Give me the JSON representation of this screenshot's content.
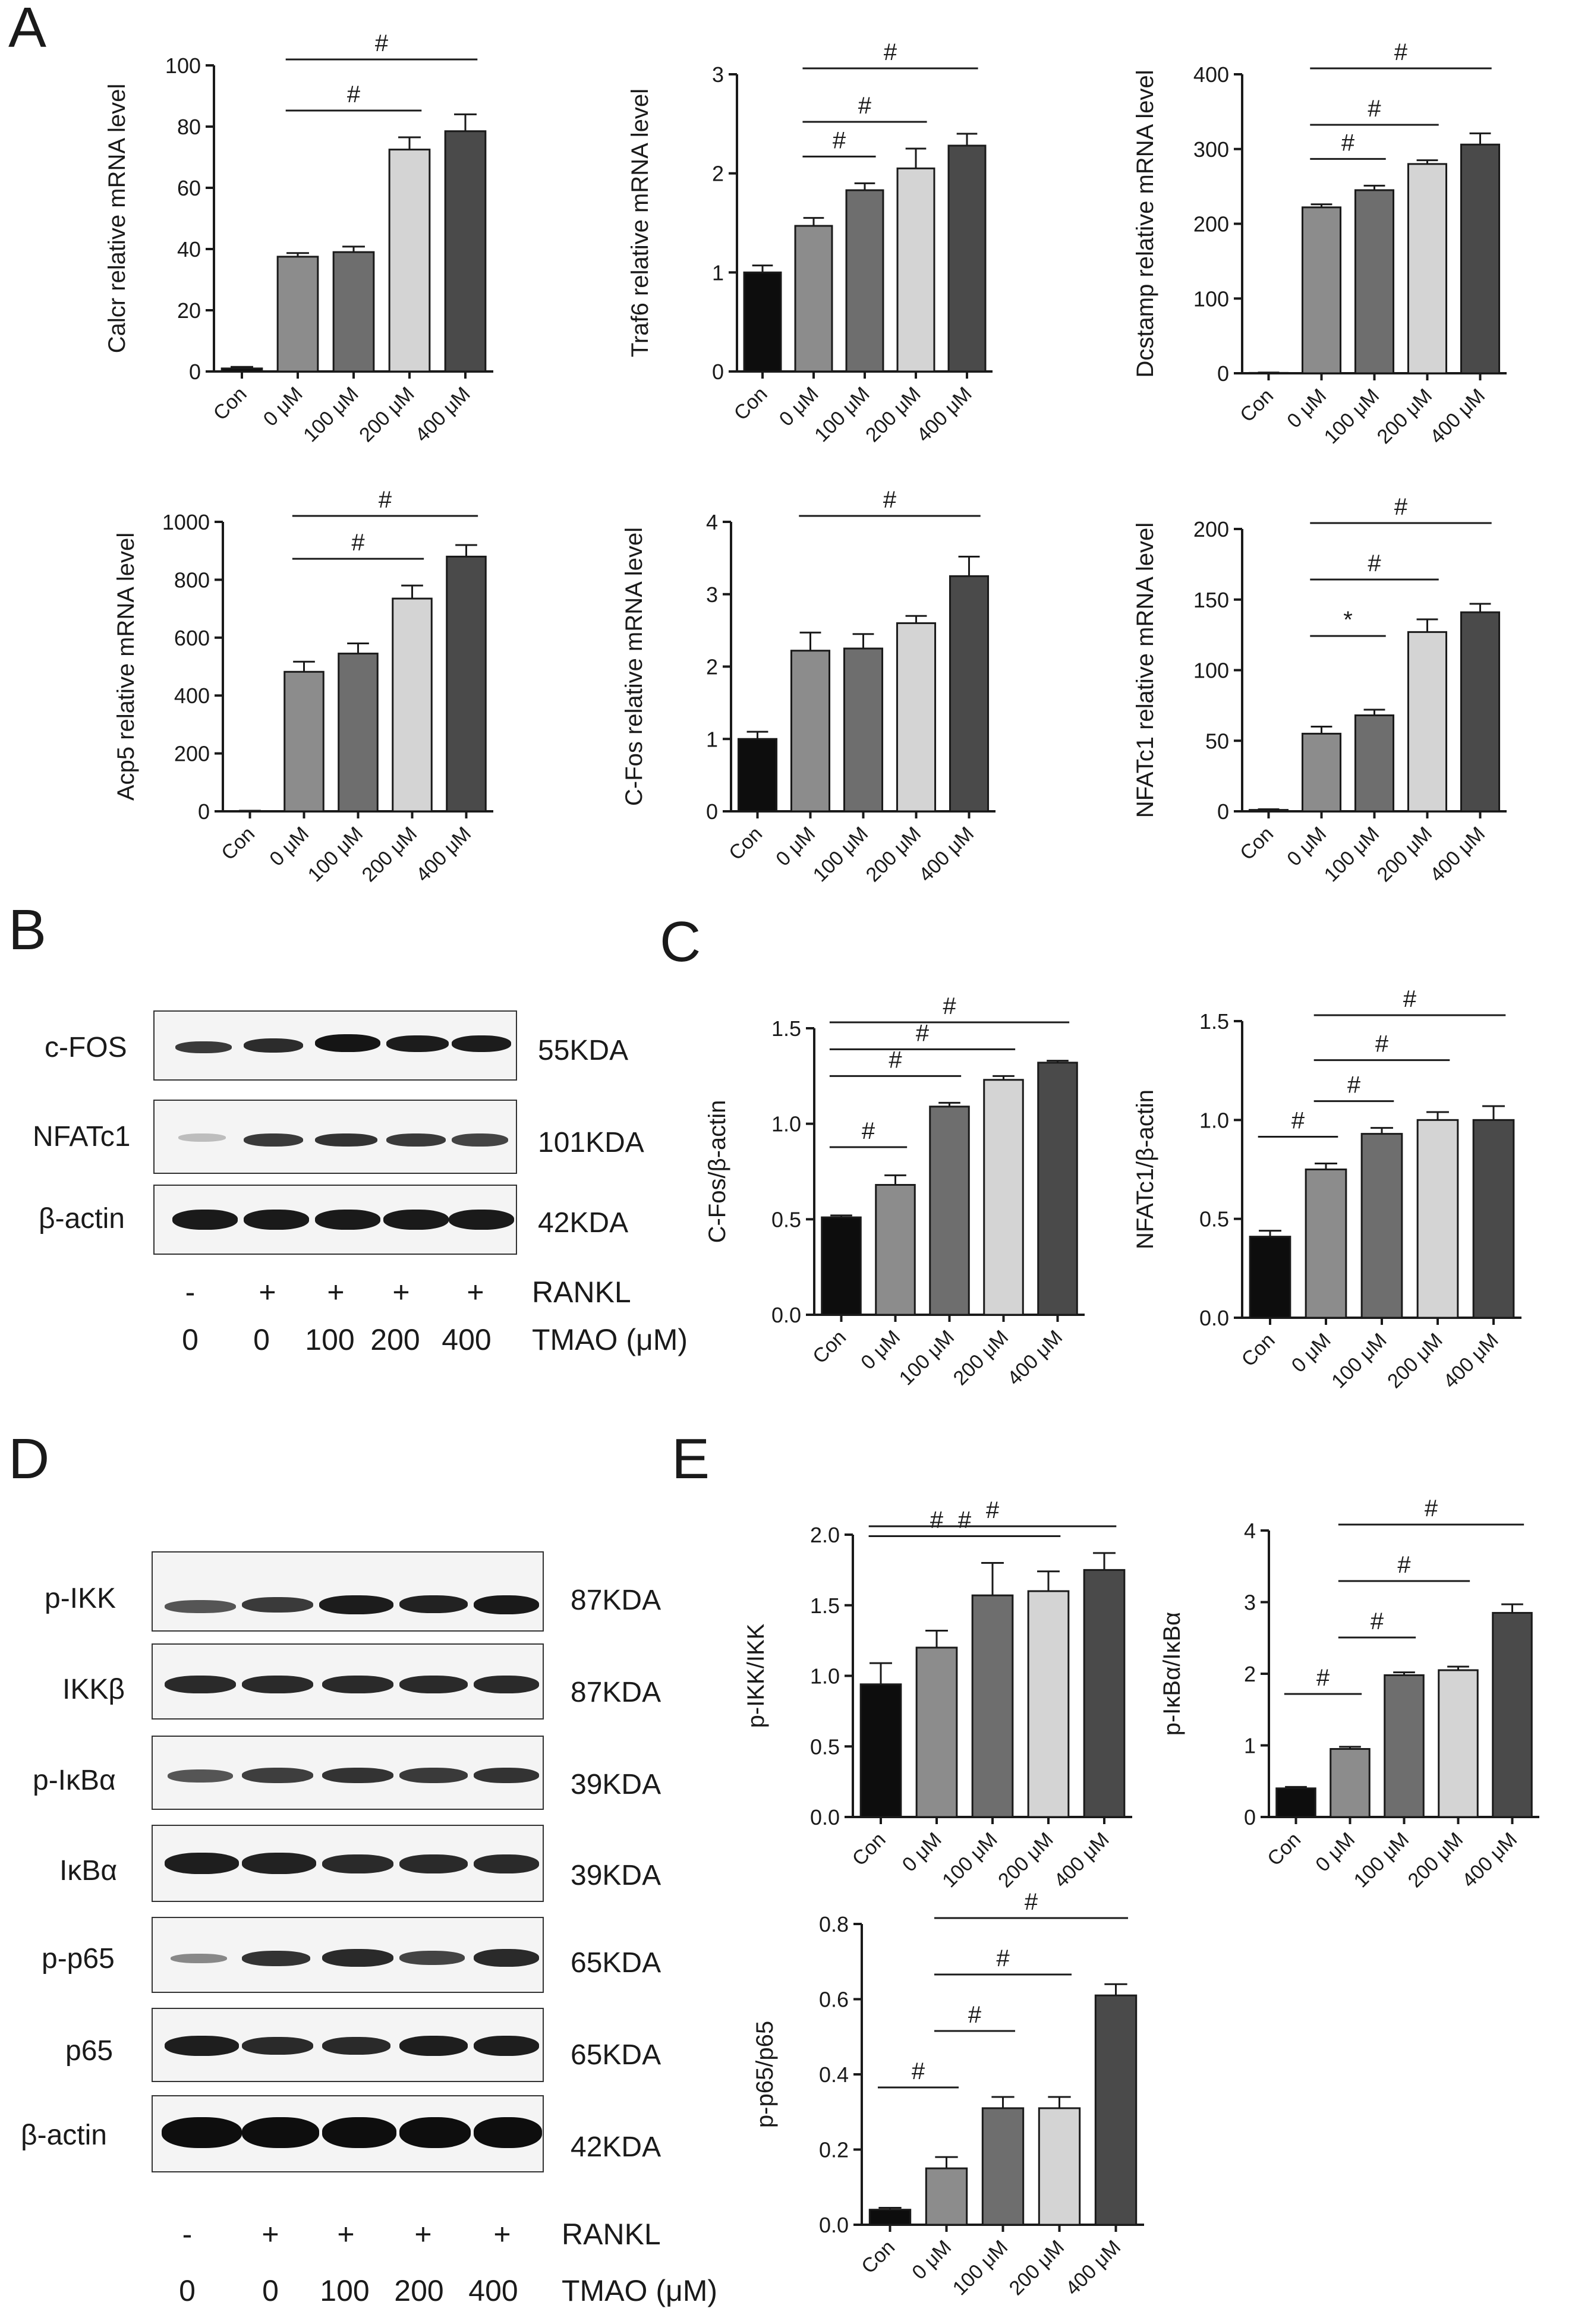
{
  "panels": {
    "A": "A",
    "B": "B",
    "C": "C",
    "D": "D",
    "E": "E"
  },
  "categories": [
    "Con",
    "0 μM",
    "100 μM",
    "200 μM",
    "400 μM"
  ],
  "colors": {
    "bars": [
      "#0d0d0d",
      "#8c8c8c",
      "#6e6e6e",
      "#d4d4d4",
      "#4a4a4a"
    ],
    "axis": "#1a1a1a"
  },
  "chart_data": [
    {
      "id": "calcr",
      "panel": "A",
      "type": "bar",
      "ylabel": "Calcr relative mRNA level",
      "categories": [
        "Con",
        "0 μM",
        "100 μM",
        "200 μM",
        "400 μM"
      ],
      "values": [
        1,
        37.5,
        39,
        72.5,
        78.5
      ],
      "errors": [
        0.5,
        1.2,
        1.8,
        4,
        5.5
      ],
      "ylim": [
        0,
        100
      ],
      "yticks": [
        0,
        20,
        40,
        60,
        80,
        100
      ],
      "yticklabels": [
        "0",
        "20",
        "40",
        "60",
        "80",
        "100"
      ],
      "annotations": [
        {
          "from": 1,
          "to": 4,
          "label": "#"
        },
        {
          "from": 1,
          "to": 3,
          "label": "#"
        }
      ]
    },
    {
      "id": "traf6",
      "panel": "A",
      "type": "bar",
      "ylabel": "Traf6 relative mRNA level",
      "categories": [
        "Con",
        "0 μM",
        "100 μM",
        "200 μM",
        "400 μM"
      ],
      "values": [
        1,
        1.47,
        1.83,
        2.05,
        2.28
      ],
      "errors": [
        0.07,
        0.08,
        0.07,
        0.2,
        0.12
      ],
      "ylim": [
        0,
        3
      ],
      "yticks": [
        0,
        1,
        2,
        3
      ],
      "yticklabels": [
        "0",
        "1",
        "2",
        "3"
      ],
      "annotations": [
        {
          "from": 1,
          "to": 4,
          "label": "#"
        },
        {
          "from": 1,
          "to": 3,
          "label": "#"
        },
        {
          "from": 1,
          "to": 2,
          "label": "#"
        }
      ]
    },
    {
      "id": "dcstamp",
      "panel": "A",
      "type": "bar",
      "ylabel": "Dcstamp relative mRNA level",
      "categories": [
        "Con",
        "0 μM",
        "100 μM",
        "200 μM",
        "400 μM"
      ],
      "values": [
        0.5,
        222,
        245,
        280,
        306
      ],
      "errors": [
        0.5,
        4,
        6,
        5,
        15
      ],
      "ylim": [
        0,
        400
      ],
      "yticks": [
        0,
        100,
        200,
        300,
        400
      ],
      "yticklabels": [
        "0",
        "100",
        "200",
        "300",
        "400"
      ],
      "annotations": [
        {
          "from": 1,
          "to": 4,
          "label": "#"
        },
        {
          "from": 1,
          "to": 3,
          "label": "#"
        },
        {
          "from": 1,
          "to": 2,
          "label": "#"
        }
      ]
    },
    {
      "id": "acp5",
      "panel": "A",
      "type": "bar",
      "ylabel": "Acp5 relative mRNA level",
      "categories": [
        "Con",
        "0 μM",
        "100 μM",
        "200 μM",
        "400 μM"
      ],
      "values": [
        1,
        482,
        545,
        735,
        880
      ],
      "errors": [
        1,
        35,
        35,
        45,
        40
      ],
      "ylim": [
        0,
        1000
      ],
      "yticks": [
        0,
        200,
        400,
        600,
        800,
        1000
      ],
      "yticklabels": [
        "0",
        "200",
        "400",
        "600",
        "800",
        "1000"
      ],
      "annotations": [
        {
          "from": 1,
          "to": 4,
          "label": "#"
        },
        {
          "from": 1,
          "to": 3,
          "label": "#"
        }
      ]
    },
    {
      "id": "cfos",
      "panel": "A",
      "type": "bar",
      "ylabel": "C-Fos relative mRNA level",
      "categories": [
        "Con",
        "0 μM",
        "100 μM",
        "200 μM",
        "400 μM"
      ],
      "values": [
        1,
        2.22,
        2.25,
        2.6,
        3.25
      ],
      "errors": [
        0.1,
        0.25,
        0.2,
        0.1,
        0.27
      ],
      "ylim": [
        0,
        4
      ],
      "yticks": [
        0,
        1,
        2,
        3,
        4
      ],
      "yticklabels": [
        "0",
        "1",
        "2",
        "3",
        "4"
      ],
      "annotations": [
        {
          "from": 1,
          "to": 4,
          "label": "#"
        }
      ]
    },
    {
      "id": "nfatc1_mrna",
      "panel": "A",
      "type": "bar",
      "ylabel": "NFATc1 relative mRNA level",
      "categories": [
        "Con",
        "0 μM",
        "100 μM",
        "200 μM",
        "400 μM"
      ],
      "values": [
        1,
        55,
        68,
        127,
        141
      ],
      "errors": [
        0.5,
        5,
        4,
        9,
        6
      ],
      "ylim": [
        0,
        200
      ],
      "yticks": [
        0,
        50,
        100,
        150,
        200
      ],
      "yticklabels": [
        "0",
        "50",
        "100",
        "150",
        "200"
      ],
      "annotations": [
        {
          "from": 1,
          "to": 4,
          "label": "#"
        },
        {
          "from": 1,
          "to": 3,
          "label": "#"
        },
        {
          "from": 1,
          "to": 2,
          "label": "*"
        }
      ]
    },
    {
      "id": "cfos_actin",
      "panel": "C",
      "type": "bar",
      "ylabel": "C-Fos/β-actin",
      "categories": [
        "Con",
        "0 μM",
        "100 μM",
        "200 μM",
        "400 μM"
      ],
      "values": [
        0.51,
        0.68,
        1.09,
        1.23,
        1.32
      ],
      "errors": [
        0.01,
        0.05,
        0.02,
        0.02,
        0.01
      ],
      "ylim": [
        0,
        1.5
      ],
      "yticks": [
        0,
        0.5,
        1,
        1.5
      ],
      "yticklabels": [
        "0.0",
        "0.5",
        "1.0",
        "1.5"
      ],
      "annotations": [
        {
          "from": 0,
          "to": 4,
          "label": "#"
        },
        {
          "from": 0,
          "to": 3,
          "label": "#"
        },
        {
          "from": 0,
          "to": 2,
          "label": "#"
        },
        {
          "from": 0,
          "to": 1,
          "label": "#"
        }
      ]
    },
    {
      "id": "nfatc1_actin",
      "panel": "C",
      "type": "bar",
      "ylabel": "NFATc1/β-actin",
      "categories": [
        "Con",
        "0 μM",
        "100 μM",
        "200 μM",
        "400 μM"
      ],
      "values": [
        0.41,
        0.75,
        0.93,
        1.0,
        1.0
      ],
      "errors": [
        0.03,
        0.03,
        0.03,
        0.04,
        0.07
      ],
      "ylim": [
        0,
        1.5
      ],
      "yticks": [
        0,
        0.5,
        1,
        1.5
      ],
      "yticklabels": [
        "0.0",
        "0.5",
        "1.0",
        "1.5"
      ],
      "annotations": [
        {
          "from": 1,
          "to": 4,
          "label": "#"
        },
        {
          "from": 1,
          "to": 3,
          "label": "#"
        },
        {
          "from": 1,
          "to": 2,
          "label": "#"
        },
        {
          "from": 0,
          "to": 1,
          "label": "#"
        }
      ]
    },
    {
      "id": "pikk",
      "panel": "E",
      "type": "bar",
      "ylabel": "p-IKK/IKK",
      "categories": [
        "Con",
        "0 μM",
        "100 μM",
        "200 μM",
        "400 μM"
      ],
      "values": [
        0.94,
        1.2,
        1.57,
        1.6,
        1.75
      ],
      "errors": [
        0.15,
        0.12,
        0.23,
        0.14,
        0.12
      ],
      "ylim": [
        0,
        2
      ],
      "yticks": [
        0,
        0.5,
        1,
        1.5,
        2
      ],
      "yticklabels": [
        "0.0",
        "0.5",
        "1.0",
        "1.5",
        "2.0"
      ],
      "annotations": [
        {
          "from": 0,
          "to": 4,
          "label": "#"
        },
        {
          "from": 0,
          "to": 3,
          "label": "#"
        },
        {
          "from": 0,
          "to": 2,
          "label": "#"
        }
      ]
    },
    {
      "id": "pikba",
      "panel": "E",
      "type": "bar",
      "ylabel": "p-IκBα/IκBα",
      "categories": [
        "Con",
        "0 μM",
        "100 μM",
        "200 μM",
        "400 μM"
      ],
      "values": [
        0.4,
        0.95,
        1.98,
        2.05,
        2.85
      ],
      "errors": [
        0.02,
        0.03,
        0.04,
        0.05,
        0.12
      ],
      "ylim": [
        0,
        4
      ],
      "yticks": [
        0,
        1,
        2,
        3,
        4
      ],
      "yticklabels": [
        "0",
        "1",
        "2",
        "3",
        "4"
      ],
      "annotations": [
        {
          "from": 1,
          "to": 4,
          "label": "#"
        },
        {
          "from": 1,
          "to": 3,
          "label": "#"
        },
        {
          "from": 1,
          "to": 2,
          "label": "#"
        },
        {
          "from": 0,
          "to": 1,
          "label": "#"
        }
      ]
    },
    {
      "id": "pp65",
      "panel": "E",
      "type": "bar",
      "ylabel": "p-p65/p65",
      "categories": [
        "Con",
        "0 μM",
        "100 μM",
        "200 μM",
        "400 μM"
      ],
      "values": [
        0.04,
        0.15,
        0.31,
        0.31,
        0.61
      ],
      "errors": [
        0.005,
        0.03,
        0.03,
        0.03,
        0.03
      ],
      "ylim": [
        0,
        0.8
      ],
      "yticks": [
        0,
        0.2,
        0.4,
        0.6,
        0.8
      ],
      "yticklabels": [
        "0.0",
        "0.2",
        "0.4",
        "0.6",
        "0.8"
      ],
      "annotations": [
        {
          "from": 1,
          "to": 4,
          "label": "#"
        },
        {
          "from": 1,
          "to": 3,
          "label": "#"
        },
        {
          "from": 1,
          "to": 2,
          "label": "#"
        },
        {
          "from": 0,
          "to": 1,
          "label": "#"
        }
      ]
    }
  ],
  "blot_B": {
    "rows": [
      {
        "label": "c-FOS",
        "kda": "55KDA"
      },
      {
        "label": "NFATc1",
        "kda": "101KDA"
      },
      {
        "label": "β-actin",
        "kda": "42KDA"
      }
    ],
    "rankl": [
      "-",
      "+",
      "+",
      "+",
      "+"
    ],
    "rankl_label": "RANKL",
    "tmao": [
      "0",
      "0",
      "100",
      "200",
      "400"
    ],
    "tmao_label": "TMAO (μM)"
  },
  "blot_D": {
    "rows": [
      {
        "label": "p-IKK",
        "kda": "87KDA"
      },
      {
        "label": "IKKβ",
        "kda": "87KDA"
      },
      {
        "label": "p-IκBα",
        "kda": "39KDA"
      },
      {
        "label": "IκBα",
        "kda": "39KDA"
      },
      {
        "label": "p-p65",
        "kda": "65KDA"
      },
      {
        "label": "p65",
        "kda": "65KDA"
      },
      {
        "label": "β-actin",
        "kda": "42KDA"
      }
    ],
    "rankl": [
      "-",
      "+",
      "+",
      "+",
      "+"
    ],
    "rankl_label": "RANKL",
    "tmao": [
      "0",
      "0",
      "100",
      "200",
      "400"
    ],
    "tmao_label": "TMAO (μM)"
  }
}
